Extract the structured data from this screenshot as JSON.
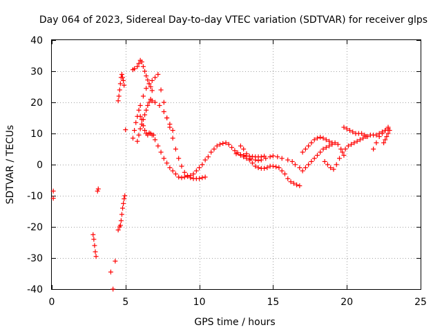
{
  "chart_data": {
    "type": "scatter",
    "title": "Day 064 of 2023, Sidereal Day-to-day VTEC variation (SDTVAR) for receiver glps",
    "xlabel": "GPS time / hours",
    "ylabel": "SDTVAR / TECUs",
    "xlim": [
      0,
      25
    ],
    "ylim": [
      -40,
      40
    ],
    "xticks": [
      0,
      5,
      10,
      15,
      20,
      25
    ],
    "xtick_labels": [
      "0",
      "5",
      "10",
      "15",
      "20",
      "25"
    ],
    "yticks": [
      -40,
      -30,
      -20,
      -10,
      0,
      10,
      20,
      30,
      40
    ],
    "ytick_labels": [
      "-40",
      "-30",
      "-20",
      "-10",
      "0",
      "10",
      "20",
      "30",
      "40"
    ],
    "grid": true,
    "marker": "+",
    "color": "#ff0000",
    "series": [
      {
        "name": "SDTVAR",
        "x": [
          0.1,
          0.1,
          2.8,
          2.85,
          2.9,
          2.95,
          3.0,
          3.1,
          3.15,
          4.0,
          4.15,
          4.3,
          4.5,
          4.6,
          4.65,
          4.7,
          4.75,
          4.8,
          4.85,
          4.9,
          4.95,
          4.5,
          4.55,
          4.6,
          4.65,
          4.7,
          4.75,
          4.8,
          4.85,
          4.9,
          5.0,
          5.5,
          5.6,
          5.8,
          5.9,
          6.0,
          6.1,
          6.2,
          6.3,
          6.4,
          6.5,
          6.6,
          6.7,
          6.8,
          6.0,
          6.1,
          6.2,
          6.3,
          6.4,
          6.5,
          6.6,
          6.7,
          6.8,
          6.9,
          7.0,
          7.2,
          7.4,
          7.6,
          7.8,
          8.0,
          8.2,
          8.4,
          8.6,
          8.8,
          9.0,
          9.2,
          9.4,
          9.6,
          9.8,
          10.0,
          10.2,
          10.4,
          10.6,
          10.8,
          11.0,
          11.2,
          11.4,
          11.6,
          11.8,
          12.0,
          12.2,
          12.4,
          12.6,
          12.8,
          13.0,
          13.2,
          13.4,
          13.6,
          13.8,
          14.0,
          14.2,
          14.4,
          5.8,
          5.9,
          6.0,
          6.1,
          6.2,
          6.3,
          6.4,
          6.5,
          6.6,
          6.7,
          6.8,
          7.0,
          7.3,
          7.6,
          7.8,
          8.0,
          8.2,
          5.5,
          5.6,
          5.7,
          5.8,
          5.9,
          6.0,
          6.2,
          6.4,
          6.6,
          6.8,
          7.0,
          7.2,
          7.4,
          7.6,
          7.8,
          8.0,
          8.2,
          8.4,
          8.6,
          8.8,
          9.0,
          9.2,
          9.4,
          9.6,
          9.8,
          10.0,
          10.2,
          10.4,
          12.8,
          13.0,
          13.2,
          13.4,
          13.6,
          13.8,
          14.0,
          14.2,
          14.4,
          14.6,
          14.8,
          15.0,
          15.2,
          15.4,
          15.6,
          15.8,
          16.0,
          16.2,
          16.4,
          16.6,
          16.8,
          12.5,
          12.8,
          13.0,
          13.2,
          13.5,
          13.8,
          14.0,
          14.2,
          14.5,
          14.8,
          15.0,
          15.3,
          15.6,
          16.0,
          16.3,
          16.5,
          16.8,
          17.0,
          17.2,
          17.4,
          17.6,
          17.8,
          18.0,
          18.2,
          18.4,
          18.6,
          18.8,
          19.0,
          17.0,
          17.2,
          17.4,
          17.6,
          17.8,
          18.0,
          18.2,
          18.4,
          18.6,
          18.8,
          19.0,
          19.2,
          19.4,
          19.6,
          19.8,
          18.5,
          18.7,
          18.9,
          19.1,
          19.3,
          19.5,
          19.7,
          19.9,
          20.1,
          20.3,
          20.5,
          20.7,
          20.9,
          21.1,
          21.3,
          19.8,
          20.0,
          20.2,
          20.4,
          20.6,
          20.8,
          21.0,
          21.2,
          21.4,
          21.6,
          21.8,
          22.0,
          22.2,
          22.4,
          22.6,
          22.8,
          21.8,
          22.0,
          22.2,
          22.4,
          22.6,
          22.8,
          22.5,
          22.6,
          22.7,
          22.8,
          22.9
        ],
        "y": [
          -8.5,
          -10.8,
          -22.5,
          -24,
          -26,
          -28,
          -29.5,
          -8.5,
          -7.8,
          -34.5,
          -40,
          -31,
          -21,
          -20,
          -19.5,
          -18,
          -16,
          -14,
          -12.5,
          -11,
          -10,
          20.5,
          22,
          24,
          26,
          28,
          29,
          28,
          27,
          25.5,
          11.2,
          30.5,
          30.8,
          31.5,
          32.5,
          33.5,
          33,
          31.5,
          30,
          28.5,
          27.2,
          26,
          25,
          23.8,
          15.5,
          14.5,
          12.5,
          11,
          10,
          9.5,
          10.2,
          10,
          9.5,
          9.5,
          8,
          6,
          4,
          2,
          0.5,
          -1,
          -2,
          -3,
          -4,
          -4.2,
          -4,
          -3.8,
          -3.5,
          -3,
          -2,
          -1,
          0,
          1.5,
          2.5,
          4,
          5,
          6,
          6.5,
          6.8,
          7,
          6.5,
          5.5,
          4.5,
          3.8,
          3.2,
          3.0,
          2.8,
          2.7,
          2.6,
          2.5,
          2.5,
          2.5,
          2.7,
          7.5,
          9.5,
          11.5,
          13,
          14.5,
          16,
          17.5,
          19,
          20,
          21,
          20.5,
          20,
          19,
          17,
          15,
          13,
          11,
          8.5,
          11,
          13.5,
          15.5,
          17.5,
          19,
          22,
          24.5,
          26,
          27,
          28,
          29,
          24,
          20,
          15,
          12,
          8.5,
          5,
          2,
          -0.5,
          -2.5,
          -3.5,
          -4.2,
          -4.5,
          -4.5,
          -4.5,
          -4.2,
          -4,
          6,
          5,
          3.5,
          1.5,
          0.5,
          -0.5,
          -1,
          -1.2,
          -1.2,
          -1,
          -0.5,
          -0.5,
          -0.7,
          -1,
          -2,
          -3,
          -4.5,
          -5.5,
          -6,
          -6.5,
          -6.8,
          3.5,
          3,
          2.5,
          2,
          1.8,
          1.5,
          1.3,
          1.5,
          2,
          2.5,
          2.8,
          2.5,
          2,
          1.5,
          1,
          0,
          -1,
          -2,
          -1,
          0,
          1,
          2,
          3,
          4,
          5,
          5.5,
          6,
          6.5,
          4,
          5,
          6,
          7,
          8,
          8.5,
          8.8,
          8.5,
          8,
          7.5,
          7,
          7,
          6.5,
          5,
          3,
          1,
          0,
          -1,
          -1.5,
          0,
          2,
          4,
          5,
          6,
          6.5,
          7,
          7.5,
          8,
          8.5,
          9,
          12,
          11.5,
          11,
          10.5,
          10,
          10,
          10,
          9.5,
          9,
          9.5,
          9.5,
          9.5,
          10,
          10.5,
          11,
          11.5,
          5,
          7,
          9,
          10,
          11,
          12,
          7,
          8,
          9,
          10,
          11
        ]
      }
    ]
  }
}
